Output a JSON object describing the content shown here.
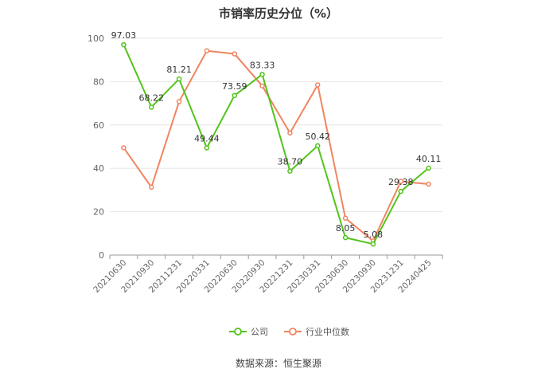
{
  "chart_data": {
    "type": "line",
    "title": "市销率历史分位（%）",
    "categories": [
      "20210630",
      "20210930",
      "20211231",
      "20220331",
      "20220630",
      "20220930",
      "20221231",
      "20230331",
      "20230630",
      "20230930",
      "20231231",
      "20240425"
    ],
    "series": [
      {
        "name": "公司",
        "color": "#52c41a",
        "values": [
          97.03,
          68.22,
          81.21,
          49.44,
          73.59,
          83.33,
          38.7,
          50.42,
          8.05,
          5.08,
          29.38,
          40.11
        ],
        "labels": [
          "97.03",
          "68.22",
          "81.21",
          "49.44",
          "73.59",
          "83.33",
          "38.70",
          "50.42",
          "8.05",
          "5.08",
          "29.38",
          "40.11"
        ]
      },
      {
        "name": "行业中位数",
        "color": "#f08560",
        "values": [
          49.5,
          31.3,
          70.8,
          94.2,
          92.8,
          78.0,
          56.3,
          78.5,
          17.0,
          6.5,
          34.0,
          32.7
        ]
      }
    ],
    "ylim": [
      0,
      100
    ],
    "yticks": [
      0,
      20,
      40,
      60,
      80,
      100
    ],
    "grid": true,
    "legend": "bottom-center"
  },
  "source_text": "数据来源：恒生聚源"
}
